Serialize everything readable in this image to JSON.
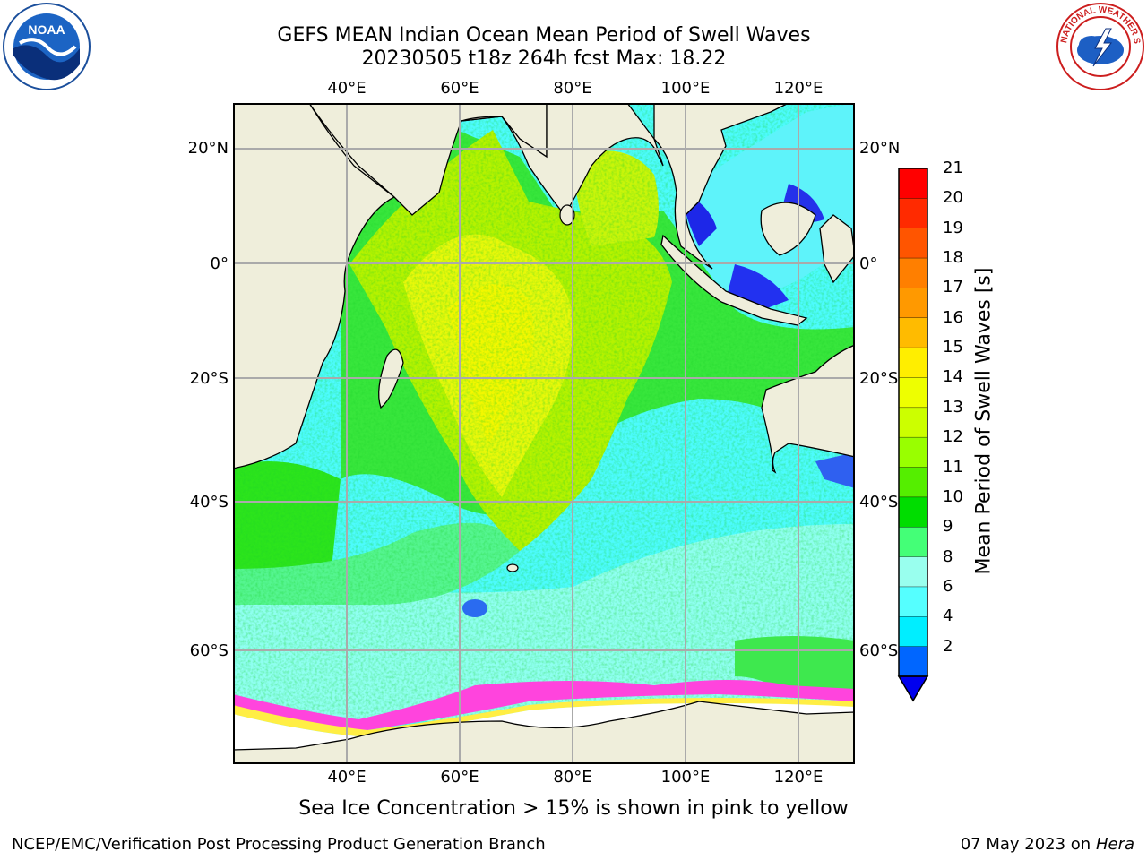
{
  "title_line1": "GEFS MEAN Indian Ocean Mean Period of Swell Waves",
  "title_line2": "20230505 t18z 264h fcst   Max: 18.22",
  "map": {
    "lon_ticks": [
      "40°E",
      "60°E",
      "80°E",
      "100°E",
      "120°E"
    ],
    "lat_ticks": [
      "20°N",
      "0°",
      "20°S",
      "40°S",
      "60°S"
    ],
    "land_color": "#efeedb",
    "ice_colors": [
      "#ff44dd",
      "#ffaa33",
      "#ffee44"
    ]
  },
  "colorbar": {
    "title": "Mean Period of Swell Waves [s]",
    "labels": [
      "21",
      "20",
      "19",
      "18",
      "17",
      "16",
      "15",
      "14",
      "13",
      "12",
      "11",
      "10",
      "9",
      "8",
      "6",
      "4",
      "2"
    ],
    "colors": [
      "#ff0000",
      "#ff2a00",
      "#ff5500",
      "#ff7f00",
      "#ff9900",
      "#ffbb00",
      "#ffee00",
      "#eeff00",
      "#ccff00",
      "#99ff00",
      "#55ee00",
      "#00dd00",
      "#44ff77",
      "#99ffee",
      "#55ffff",
      "#00eeff",
      "#0066ff"
    ],
    "extend_color": "#0000ee"
  },
  "caption": "Sea Ice Concentration > 15% is shown in pink to yellow",
  "footer": {
    "left": "NCEP/EMC/Verification Post Processing Product Generation Branch",
    "right_date": "07 May 2023 on",
    "right_host": "Hera"
  },
  "logos": {
    "noaa_text": "NOAA",
    "nws_text": "NATIONAL WEATHER SERVICE"
  }
}
